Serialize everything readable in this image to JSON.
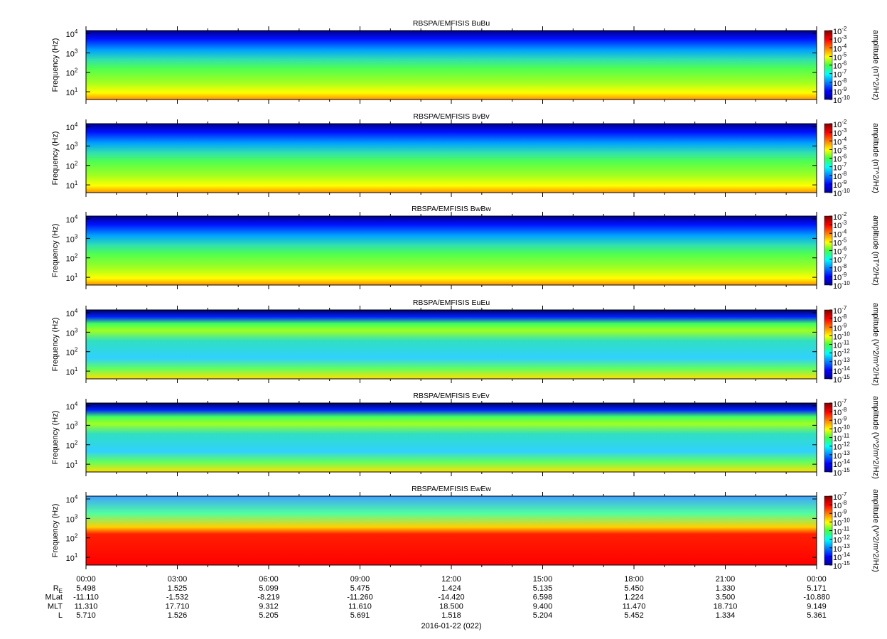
{
  "chart_data": [
    {
      "type": "spectrogram",
      "title": "RBSPA/EMFISIS  BuBu",
      "ylabel": "Frequency (Hz)",
      "ylog": true,
      "ylim": [
        4,
        14000
      ],
      "yticks": [
        {
          "value": 10,
          "label": "10^1"
        },
        {
          "value": 100,
          "label": "10^2"
        },
        {
          "value": 1000,
          "label": "10^3"
        },
        {
          "value": 10000,
          "label": "10^4"
        }
      ],
      "colormap": "jet",
      "zlabel": "amplitude (nT^2/Hz)",
      "zlim": [
        1e-10,
        0.01
      ],
      "zticks": [
        {
          "value": 0.01,
          "label": "10^-2"
        },
        {
          "value": 0.001,
          "label": "10^-3"
        },
        {
          "value": 0.0001,
          "label": "10^-4"
        },
        {
          "value": 1e-05,
          "label": "10^-5"
        },
        {
          "value": 1e-06,
          "label": "10^-6"
        },
        {
          "value": 1e-07,
          "label": "10^-7"
        },
        {
          "value": 1e-08,
          "label": "10^-8"
        },
        {
          "value": 1e-09,
          "label": "10^-9"
        },
        {
          "value": 1e-10,
          "label": "10^-10"
        }
      ]
    },
    {
      "type": "spectrogram",
      "title": "RBSPA/EMFISIS  BvBv",
      "ylabel": "Frequency (Hz)",
      "ylog": true,
      "ylim": [
        4,
        14000
      ],
      "yticks": [
        {
          "value": 10,
          "label": "10^1"
        },
        {
          "value": 100,
          "label": "10^2"
        },
        {
          "value": 1000,
          "label": "10^3"
        },
        {
          "value": 10000,
          "label": "10^4"
        }
      ],
      "colormap": "jet",
      "zlabel": "amplitude (nT^2/Hz)",
      "zlim": [
        1e-10,
        0.01
      ],
      "zticks": [
        {
          "value": 0.01,
          "label": "10^-2"
        },
        {
          "value": 0.001,
          "label": "10^-3"
        },
        {
          "value": 0.0001,
          "label": "10^-4"
        },
        {
          "value": 1e-05,
          "label": "10^-5"
        },
        {
          "value": 1e-06,
          "label": "10^-6"
        },
        {
          "value": 1e-07,
          "label": "10^-7"
        },
        {
          "value": 1e-08,
          "label": "10^-8"
        },
        {
          "value": 1e-09,
          "label": "10^-9"
        },
        {
          "value": 1e-10,
          "label": "10^-10"
        }
      ]
    },
    {
      "type": "spectrogram",
      "title": "RBSPA/EMFISIS  BwBw",
      "ylabel": "Frequency (Hz)",
      "ylog": true,
      "ylim": [
        4,
        14000
      ],
      "yticks": [
        {
          "value": 10,
          "label": "10^1"
        },
        {
          "value": 100,
          "label": "10^2"
        },
        {
          "value": 1000,
          "label": "10^3"
        },
        {
          "value": 10000,
          "label": "10^4"
        }
      ],
      "colormap": "jet",
      "zlabel": "amplitude (nT^2/Hz)",
      "zlim": [
        1e-10,
        0.01
      ],
      "zticks": [
        {
          "value": 0.01,
          "label": "10^-2"
        },
        {
          "value": 0.001,
          "label": "10^-3"
        },
        {
          "value": 0.0001,
          "label": "10^-4"
        },
        {
          "value": 1e-05,
          "label": "10^-5"
        },
        {
          "value": 1e-06,
          "label": "10^-6"
        },
        {
          "value": 1e-07,
          "label": "10^-7"
        },
        {
          "value": 1e-08,
          "label": "10^-8"
        },
        {
          "value": 1e-09,
          "label": "10^-9"
        },
        {
          "value": 1e-10,
          "label": "10^-10"
        }
      ]
    },
    {
      "type": "spectrogram",
      "title": "RBSPA/EMFISIS  EuEu",
      "ylabel": "Frequency (Hz)",
      "ylog": true,
      "ylim": [
        4,
        14000
      ],
      "yticks": [
        {
          "value": 10,
          "label": "10^1"
        },
        {
          "value": 100,
          "label": "10^2"
        },
        {
          "value": 1000,
          "label": "10^3"
        },
        {
          "value": 10000,
          "label": "10^4"
        }
      ],
      "colormap": "jet",
      "zlabel": "amplitude (V^2/m^2/Hz)",
      "zlim": [
        1e-15,
        1e-07
      ],
      "zticks": [
        {
          "value": 1e-07,
          "label": "10^-7"
        },
        {
          "value": 1e-08,
          "label": "10^-8"
        },
        {
          "value": 1e-09,
          "label": "10^-9"
        },
        {
          "value": 1e-10,
          "label": "10^-10"
        },
        {
          "value": 1e-11,
          "label": "10^-11"
        },
        {
          "value": 1e-12,
          "label": "10^-12"
        },
        {
          "value": 1e-13,
          "label": "10^-13"
        },
        {
          "value": 1e-14,
          "label": "10^-14"
        },
        {
          "value": 1e-15,
          "label": "10^-15"
        }
      ]
    },
    {
      "type": "spectrogram",
      "title": "RBSPA/EMFISIS  EvEv",
      "ylabel": "Frequency (Hz)",
      "ylog": true,
      "ylim": [
        4,
        14000
      ],
      "yticks": [
        {
          "value": 10,
          "label": "10^1"
        },
        {
          "value": 100,
          "label": "10^2"
        },
        {
          "value": 1000,
          "label": "10^3"
        },
        {
          "value": 10000,
          "label": "10^4"
        }
      ],
      "colormap": "jet",
      "zlabel": "amplitude (V^2/m^2/Hz)",
      "zlim": [
        1e-15,
        1e-07
      ],
      "zticks": [
        {
          "value": 1e-07,
          "label": "10^-7"
        },
        {
          "value": 1e-08,
          "label": "10^-8"
        },
        {
          "value": 1e-09,
          "label": "10^-9"
        },
        {
          "value": 1e-10,
          "label": "10^-10"
        },
        {
          "value": 1e-11,
          "label": "10^-11"
        },
        {
          "value": 1e-12,
          "label": "10^-12"
        },
        {
          "value": 1e-13,
          "label": "10^-13"
        },
        {
          "value": 1e-14,
          "label": "10^-14"
        },
        {
          "value": 1e-15,
          "label": "10^-15"
        }
      ]
    },
    {
      "type": "spectrogram",
      "title": "RBSPA/EMFISIS  EwEw",
      "ylabel": "Frequency (Hz)",
      "ylog": true,
      "ylim": [
        4,
        14000
      ],
      "yticks": [
        {
          "value": 10,
          "label": "10^1"
        },
        {
          "value": 100,
          "label": "10^2"
        },
        {
          "value": 1000,
          "label": "10^3"
        },
        {
          "value": 10000,
          "label": "10^4"
        }
      ],
      "colormap": "jet",
      "zlabel": "amplitude (V^2/m^2/Hz)",
      "zlim": [
        1e-15,
        1e-07
      ],
      "zticks": [
        {
          "value": 1e-07,
          "label": "10^-7"
        },
        {
          "value": 1e-08,
          "label": "10^-8"
        },
        {
          "value": 1e-09,
          "label": "10^-9"
        },
        {
          "value": 1e-10,
          "label": "10^-10"
        },
        {
          "value": 1e-11,
          "label": "10^-11"
        },
        {
          "value": 1e-12,
          "label": "10^-12"
        },
        {
          "value": 1e-13,
          "label": "10^-13"
        },
        {
          "value": 1e-14,
          "label": "10^-14"
        },
        {
          "value": 1e-15,
          "label": "10^-15"
        }
      ]
    }
  ],
  "time_axis": {
    "xlim": [
      0,
      24
    ],
    "xticks": [
      {
        "value": 0,
        "label": "00:00"
      },
      {
        "value": 3,
        "label": "03:00"
      },
      {
        "value": 6,
        "label": "06:00"
      },
      {
        "value": 9,
        "label": "09:00"
      },
      {
        "value": 12,
        "label": "12:00"
      },
      {
        "value": 15,
        "label": "15:00"
      },
      {
        "value": 18,
        "label": "18:00"
      },
      {
        "value": 21,
        "label": "21:00"
      },
      {
        "value": 24,
        "label": "00:00"
      }
    ],
    "xlabel": "2016-01-22 (022)",
    "rows": [
      {
        "name": "R_E",
        "values": [
          "5.498",
          "1.525",
          "5.099",
          "5.475",
          "1.424",
          "5.135",
          "5.450",
          "1.330",
          "5.171"
        ]
      },
      {
        "name": "MLat",
        "values": [
          "-11.110",
          "-1.532",
          "-8.219",
          "-11.260",
          "-14.420",
          "6.598",
          "1.224",
          "3.500",
          "-10.880"
        ]
      },
      {
        "name": "MLT",
        "values": [
          "11.310",
          "17.710",
          "9.312",
          "11.610",
          "18.500",
          "9.400",
          "11.470",
          "18.710",
          "9.149"
        ]
      },
      {
        "name": "L",
        "values": [
          "5.710",
          "1.526",
          "5.205",
          "5.691",
          "1.518",
          "5.204",
          "5.452",
          "1.334",
          "5.361"
        ]
      }
    ]
  }
}
